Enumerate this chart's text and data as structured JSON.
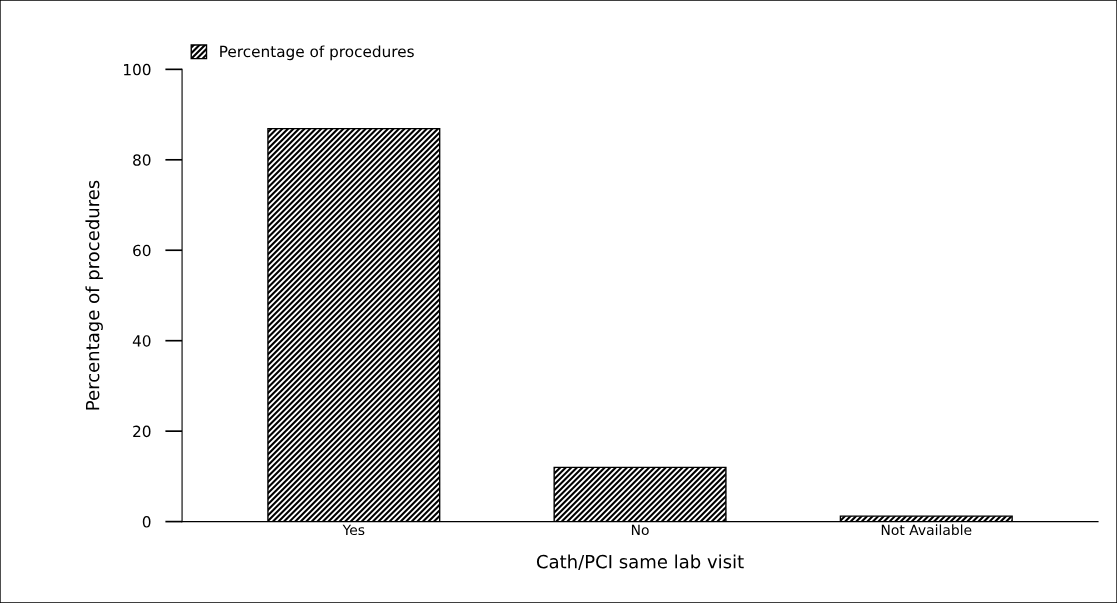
{
  "chart_data": {
    "type": "bar",
    "xlabel": "Cath/PCI same lab visit",
    "ylabel": "Percentage of procedures",
    "categories": [
      "Yes",
      "No",
      "Not Available"
    ],
    "series": [
      {
        "name": "Percentage of procedures",
        "color": "#000000",
        "values": [
          86.9,
          12.0,
          1.2
        ]
      }
    ],
    "ylim": [
      0,
      100
    ],
    "yticks": [
      0,
      20,
      40,
      60,
      80,
      100
    ],
    "grid": false,
    "legend": "top left"
  }
}
